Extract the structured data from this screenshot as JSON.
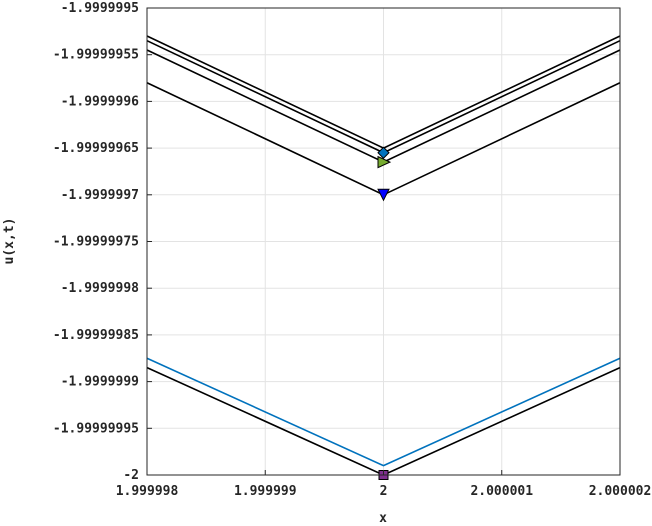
{
  "chart_data": {
    "type": "line",
    "title": "",
    "xlabel": "x",
    "ylabel": "u(x,t)",
    "xlim": [
      1.999998,
      2.000002
    ],
    "ylim": [
      -2.0,
      -1.9999995
    ],
    "grid": true,
    "x_ticks": [
      {
        "value": 1.999998,
        "label": "1.999998"
      },
      {
        "value": 1.999999,
        "label": "1.999999"
      },
      {
        "value": 2.0,
        "label": "2"
      },
      {
        "value": 2.000001,
        "label": "2.000001"
      },
      {
        "value": 2.000002,
        "label": "2.000002"
      }
    ],
    "y_ticks": [
      {
        "value": -1.9999995,
        "label": "-1.9999995"
      },
      {
        "value": -1.99999955,
        "label": "-1.99999955"
      },
      {
        "value": -1.9999996,
        "label": "-1.9999996"
      },
      {
        "value": -1.99999965,
        "label": "-1.99999965"
      },
      {
        "value": -1.9999997,
        "label": "-1.9999997"
      },
      {
        "value": -1.99999975,
        "label": "-1.99999975"
      },
      {
        "value": -1.9999998,
        "label": "-1.9999998"
      },
      {
        "value": -1.99999985,
        "label": "-1.99999985"
      },
      {
        "value": -1.9999999,
        "label": "-1.9999999"
      },
      {
        "value": -1.99999995,
        "label": "-1.99999995"
      },
      {
        "value": -2.0,
        "label": "-2"
      }
    ],
    "series": [
      {
        "color": "#000000",
        "x": [
          1.999998,
          2.0,
          2.000002
        ],
        "y": [
          -1.99999953,
          -1.99999965,
          -1.99999953
        ],
        "marker": "none"
      },
      {
        "color": "#000000",
        "x": [
          1.999998,
          2.0,
          2.000002
        ],
        "y": [
          -1.999999535,
          -1.999999655,
          -1.999999535
        ],
        "marker": "none"
      },
      {
        "color": "#000000",
        "x": [
          1.999998,
          2.0,
          2.000002
        ],
        "y": [
          -1.999999545,
          -1.999999665,
          -1.999999545
        ],
        "marker": "none"
      },
      {
        "color": "#000000",
        "x": [
          1.999998,
          2.0,
          2.000002
        ],
        "y": [
          -1.99999958,
          -1.9999997,
          -1.99999958
        ],
        "marker": "none"
      },
      {
        "color": "#0072BD",
        "x": [
          1.999998,
          2.0,
          2.000002
        ],
        "y": [
          -1.999999875,
          -1.99999999,
          -1.999999875
        ],
        "marker": "none"
      },
      {
        "color": "#000000",
        "x": [
          1.999998,
          2.0,
          2.000002
        ],
        "y": [
          -1.999999885,
          -2.0,
          -1.999999885
        ],
        "marker": "none"
      }
    ],
    "markers": [
      {
        "shape": "diamond",
        "color": "#0072BD",
        "x": 2.0,
        "y": -1.999999655
      },
      {
        "shape": "triangle-right",
        "color": "#77AC30",
        "x": 2.0,
        "y": -1.999999665
      },
      {
        "shape": "triangle-down",
        "color": "#0000FF",
        "x": 2.0,
        "y": -1.9999997
      },
      {
        "shape": "square",
        "color": "#7E2F8E",
        "x": 2.0,
        "y": -2.0
      }
    ]
  }
}
